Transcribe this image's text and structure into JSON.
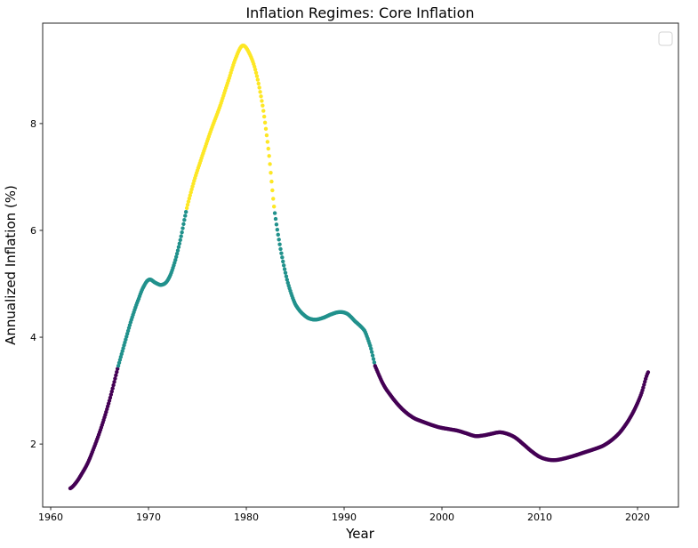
{
  "figure": {
    "background": "#ffffff",
    "spine_color": "#262626",
    "tick_color": "#262626",
    "text_color": "#000000"
  },
  "legend": {
    "visible": true,
    "entries": [],
    "position": "upper-right",
    "border_color": "#d3d3d3",
    "fill_color": "#ffffff"
  },
  "chart_data": {
    "type": "scatter",
    "title": "Inflation Regimes: Core Inflation",
    "xlabel": "Year",
    "ylabel": "Annualized Inflation (%)",
    "grid": false,
    "x_ticks": [
      1960,
      1970,
      1980,
      1990,
      2000,
      2010,
      2020
    ],
    "y_ticks": [
      2,
      4,
      6,
      8
    ],
    "xlim": [
      1959.18,
      2024.18
    ],
    "ylim": [
      0.82,
      9.88
    ],
    "marker_diameter_px": 4.4,
    "sample_step_years": 0.08333,
    "regime_colors": {
      "low": "#440154",
      "mid": "#21918c",
      "high": "#fde725"
    },
    "regime_segments": [
      {
        "regime": "low",
        "from": 1962.0,
        "to": 1966.87
      },
      {
        "regime": "mid",
        "from": 1966.87,
        "to": 1973.91
      },
      {
        "regime": "high",
        "from": 1973.91,
        "to": 1982.85
      },
      {
        "regime": "mid",
        "from": 1982.85,
        "to": 1993.16
      },
      {
        "regime": "low",
        "from": 1993.16,
        "to": 2021.1
      }
    ],
    "series": [
      {
        "name": "core-inflation",
        "keypoints": [
          [
            1962.0,
            1.17
          ],
          [
            1962.6,
            1.28
          ],
          [
            1963.2,
            1.45
          ],
          [
            1963.8,
            1.65
          ],
          [
            1964.4,
            1.92
          ],
          [
            1965.0,
            2.22
          ],
          [
            1965.6,
            2.56
          ],
          [
            1966.2,
            2.95
          ],
          [
            1966.85,
            3.42
          ],
          [
            1967.5,
            3.85
          ],
          [
            1968.2,
            4.3
          ],
          [
            1969.0,
            4.72
          ],
          [
            1969.6,
            4.98
          ],
          [
            1970.1,
            5.08
          ],
          [
            1970.7,
            5.02
          ],
          [
            1971.3,
            4.98
          ],
          [
            1971.9,
            5.05
          ],
          [
            1972.5,
            5.3
          ],
          [
            1973.2,
            5.78
          ],
          [
            1973.92,
            6.42
          ],
          [
            1974.7,
            6.95
          ],
          [
            1975.5,
            7.4
          ],
          [
            1976.4,
            7.88
          ],
          [
            1977.3,
            8.32
          ],
          [
            1978.2,
            8.82
          ],
          [
            1979.0,
            9.26
          ],
          [
            1979.65,
            9.46
          ],
          [
            1980.35,
            9.3
          ],
          [
            1981.0,
            8.95
          ],
          [
            1981.7,
            8.3
          ],
          [
            1982.3,
            7.45
          ],
          [
            1982.86,
            6.4
          ],
          [
            1983.5,
            5.65
          ],
          [
            1984.2,
            5.05
          ],
          [
            1985.0,
            4.62
          ],
          [
            1986.0,
            4.4
          ],
          [
            1986.9,
            4.33
          ],
          [
            1987.8,
            4.36
          ],
          [
            1988.7,
            4.43
          ],
          [
            1989.5,
            4.47
          ],
          [
            1990.3,
            4.44
          ],
          [
            1991.1,
            4.3
          ],
          [
            1992.1,
            4.12
          ],
          [
            1992.7,
            3.82
          ],
          [
            1993.17,
            3.46
          ],
          [
            1994.0,
            3.12
          ],
          [
            1994.8,
            2.9
          ],
          [
            1995.6,
            2.72
          ],
          [
            1996.4,
            2.58
          ],
          [
            1997.2,
            2.48
          ],
          [
            1998.0,
            2.42
          ],
          [
            1998.9,
            2.36
          ],
          [
            1999.8,
            2.31
          ],
          [
            2000.7,
            2.28
          ],
          [
            2001.6,
            2.25
          ],
          [
            2002.5,
            2.2
          ],
          [
            2003.4,
            2.15
          ],
          [
            2004.2,
            2.16
          ],
          [
            2005.0,
            2.19
          ],
          [
            2005.9,
            2.22
          ],
          [
            2006.7,
            2.19
          ],
          [
            2007.5,
            2.12
          ],
          [
            2008.3,
            2.0
          ],
          [
            2009.2,
            1.86
          ],
          [
            2010.0,
            1.76
          ],
          [
            2010.8,
            1.71
          ],
          [
            2011.6,
            1.7
          ],
          [
            2012.5,
            1.73
          ],
          [
            2013.5,
            1.78
          ],
          [
            2014.5,
            1.84
          ],
          [
            2015.5,
            1.9
          ],
          [
            2016.5,
            1.97
          ],
          [
            2017.4,
            2.08
          ],
          [
            2018.2,
            2.22
          ],
          [
            2019.0,
            2.42
          ],
          [
            2019.7,
            2.65
          ],
          [
            2020.4,
            2.95
          ],
          [
            2021.1,
            3.35
          ]
        ]
      }
    ]
  }
}
